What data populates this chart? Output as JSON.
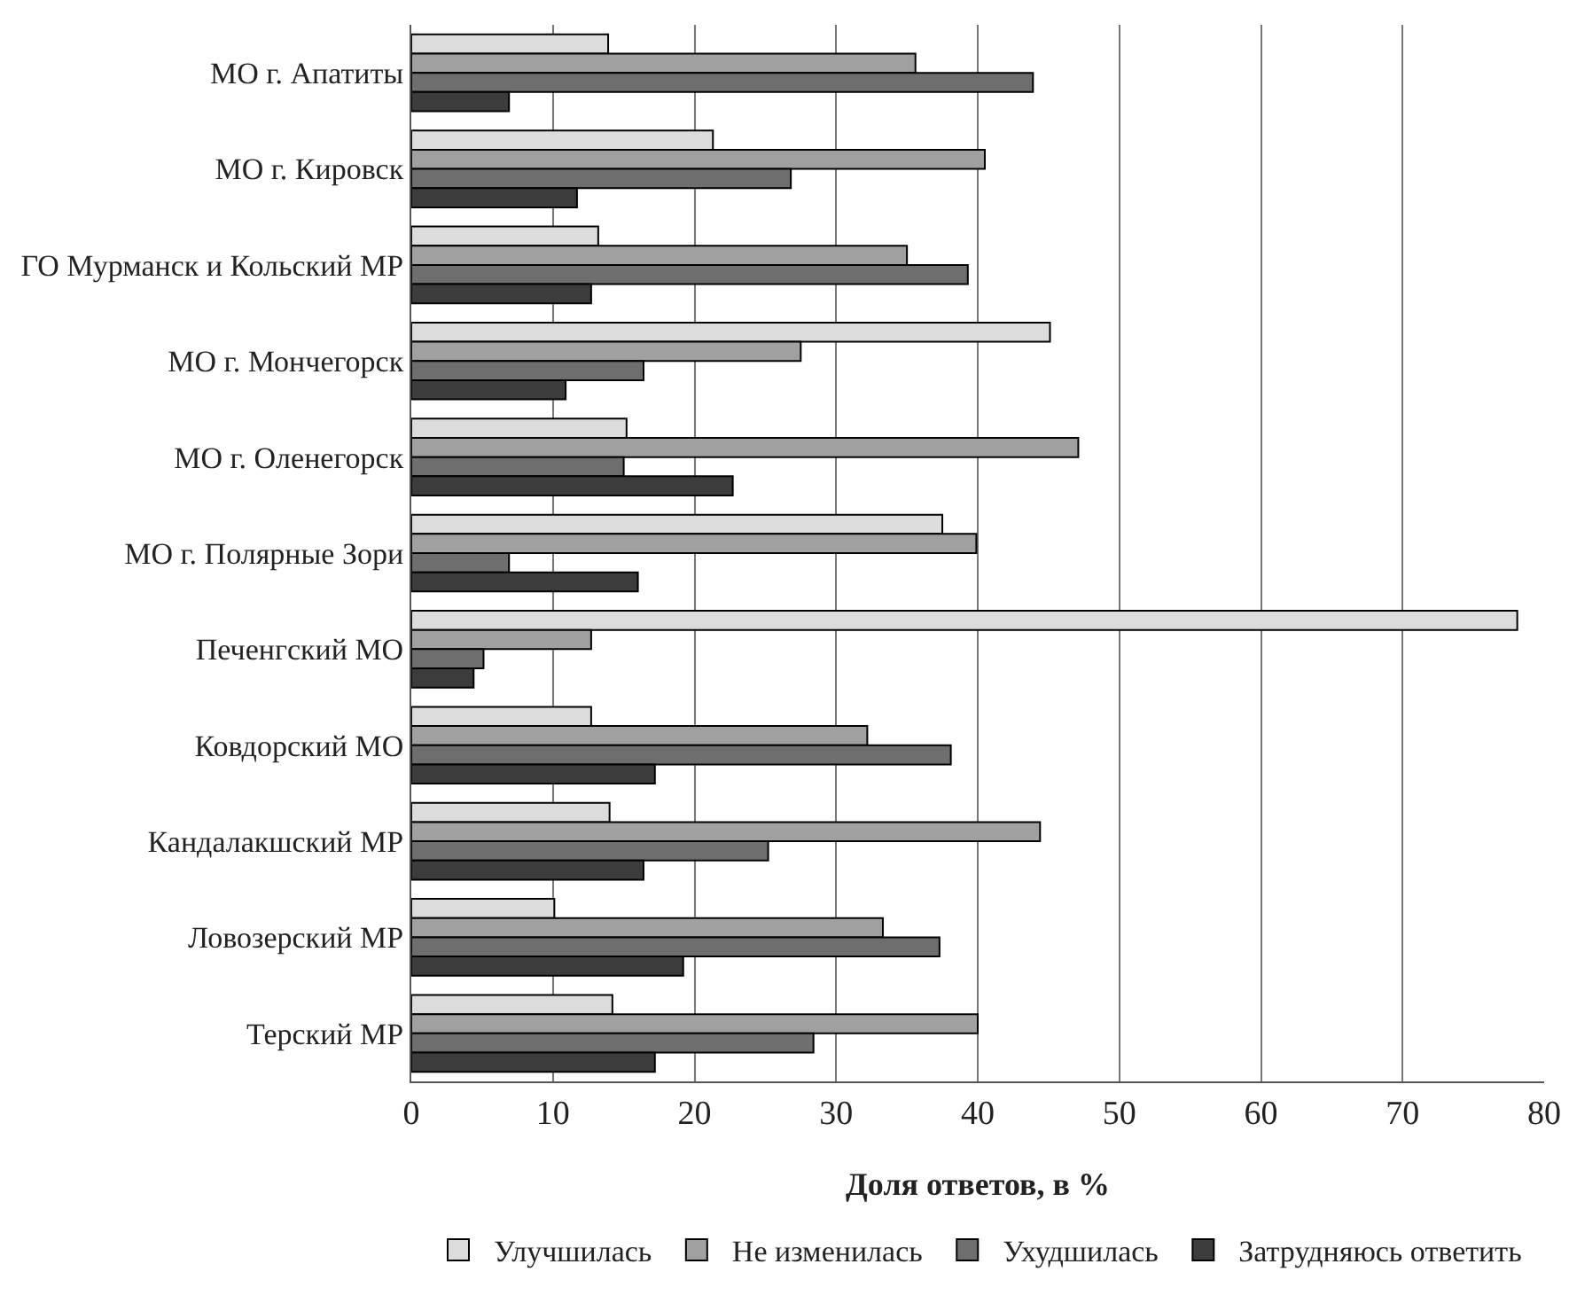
{
  "chart_data": {
    "type": "bar",
    "orientation": "horizontal",
    "xlabel": "Доля ответов, в %",
    "categories": [
      "МО г. Апатиты",
      "МО г. Кировск",
      "ГО Мурманск и Кольский МР",
      "МО г. Мончегорск",
      "МО г. Оленегорск",
      "МО г. Полярные Зори",
      "Печенгский МО",
      "Ковдорский МО",
      "Кандалакшский МР",
      "Ловозерский МР",
      "Терский МР"
    ],
    "series": [
      {
        "name": "Улучшилась",
        "color": "#dcdcdc",
        "values": [
          13.9,
          21.3,
          13.2,
          45.1,
          15.2,
          37.5,
          78.1,
          12.7,
          14.0,
          10.1,
          14.2
        ]
      },
      {
        "name": "Не изменилась",
        "color": "#a0a0a0",
        "values": [
          35.6,
          40.5,
          35.0,
          27.5,
          47.1,
          39.9,
          12.7,
          32.2,
          44.4,
          33.3,
          40.0
        ]
      },
      {
        "name": "Ухудшилась",
        "color": "#6e6e6e",
        "values": [
          43.9,
          26.8,
          39.3,
          16.4,
          15.0,
          6.9,
          5.1,
          38.1,
          25.2,
          37.3,
          28.4
        ]
      },
      {
        "name": "Затрудняюсь ответить",
        "color": "#3c3c3c",
        "values": [
          6.9,
          11.7,
          12.7,
          10.9,
          22.7,
          16.0,
          4.4,
          17.2,
          16.4,
          19.2,
          17.2
        ]
      }
    ],
    "xlim": [
      0,
      80
    ],
    "xticks": [
      0,
      10,
      20,
      30,
      40,
      50,
      60,
      70,
      80
    ],
    "grid": "x",
    "legend": "bottom"
  }
}
